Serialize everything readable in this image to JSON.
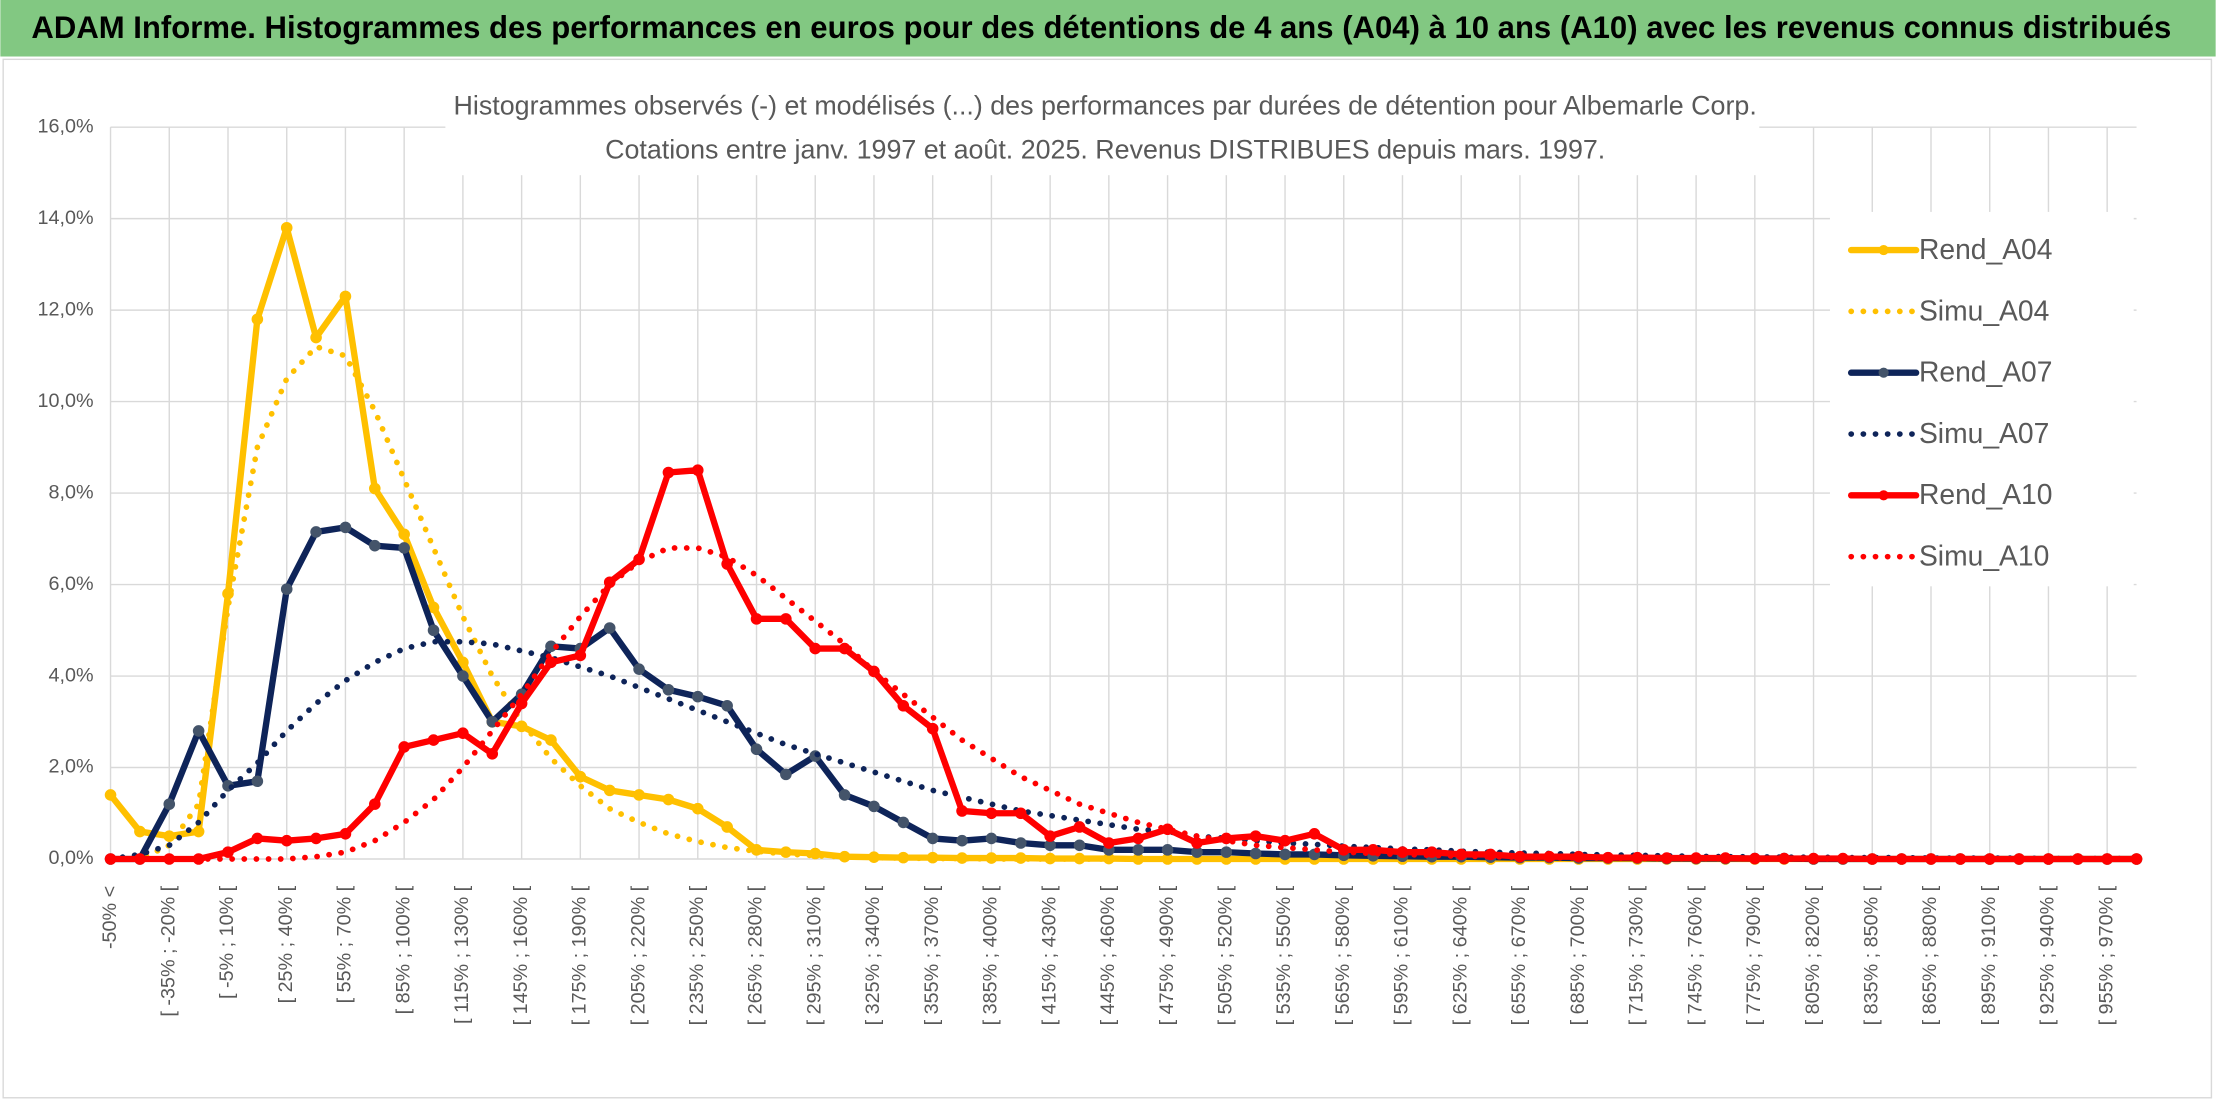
{
  "header": {
    "title": "ADAM Informe. Histogrammes des performances en euros pour des détentions de 4 ans (A04) à 10 ans (A10) avec les revenus connus distribués"
  },
  "chart_data": {
    "type": "line",
    "title": "Histogrammes observés (-) et modélisés (...) des performances par durées de détention pour Albemarle Corp.",
    "subtitle": "Cotations entre janv. 1997 et août. 2025. Revenus DISTRIBUES depuis mars. 1997.",
    "categories": [
      "-50% <",
      null,
      "[ -35% ; -20% [",
      null,
      "[ -5% ; 10% [",
      null,
      "[ 25% ; 40% [",
      null,
      "[ 55% ; 70% [",
      null,
      "[ 85% ; 100% [",
      null,
      "[ 115% ; 130% [",
      null,
      "[ 145% ; 160% [",
      null,
      "[ 175% ; 190% [",
      null,
      "[ 205% ; 220% [",
      null,
      "[ 235% ; 250% [",
      null,
      "[ 265% ; 280% [",
      null,
      "[ 295% ; 310% [",
      null,
      "[ 325% ; 340% [",
      null,
      "[ 355% ; 370% [",
      null,
      "[ 385% ; 400% [",
      null,
      "[ 415% ; 430% [",
      null,
      "[ 445% ; 460% [",
      null,
      "[ 475% ; 490% [",
      null,
      "[ 505% ; 520% [",
      null,
      "[ 535% ; 550% [",
      null,
      "[ 565% ; 580% [",
      null,
      "[ 595% ; 610% [",
      null,
      "[ 625% ; 640% [",
      null,
      "[ 655% ; 670% [",
      null,
      "[ 685% ; 700% [",
      null,
      "[ 715% ; 730% [",
      null,
      "[ 745% ; 760% [",
      null,
      "[ 775% ; 790% [",
      null,
      "[ 805% ; 820% [",
      null,
      "[ 835% ; 850% [",
      null,
      "[ 865% ; 880% [",
      null,
      "[ 895% ; 910% [",
      null,
      "[ 925% ; 940% [",
      null,
      "[ 955% ; 970% [",
      null
    ],
    "series": [
      {
        "name": "Rend_A04",
        "color": "#ffc000",
        "style": "solid",
        "marker": true,
        "marker_color": "#ffc000",
        "values": [
          1.4,
          0.6,
          0.5,
          0.6,
          5.8,
          11.8,
          13.8,
          11.4,
          12.3,
          8.1,
          7.1,
          5.5,
          4.3,
          3.0,
          2.9,
          2.6,
          1.8,
          1.5,
          1.4,
          1.3,
          1.1,
          0.7,
          0.2,
          0.15,
          0.12,
          0.05,
          0.04,
          0.03,
          0.03,
          0.02,
          0.02,
          0.02,
          0.01,
          0.01,
          0.01,
          0,
          0,
          0,
          0,
          0,
          0,
          0,
          0,
          0,
          0,
          0,
          0,
          0,
          0,
          0,
          0,
          0,
          0,
          0,
          0,
          0,
          0,
          0,
          0,
          0,
          0,
          0,
          0,
          0,
          0,
          0,
          0,
          0,
          0,
          0
        ]
      },
      {
        "name": "Simu_A04",
        "color": "#ffc000",
        "style": "dotted",
        "marker": false,
        "values": [
          0,
          0,
          0.3,
          1.2,
          5.5,
          9.0,
          10.5,
          11.2,
          11.0,
          9.8,
          8.3,
          6.8,
          5.3,
          4.0,
          3.0,
          2.2,
          1.6,
          1.1,
          0.8,
          0.55,
          0.38,
          0.25,
          0.17,
          0.11,
          0.07,
          0.05,
          0.03,
          0.02,
          0.01,
          0.01,
          0,
          0,
          0,
          0,
          0,
          0,
          0,
          0,
          0,
          0,
          0,
          0,
          0,
          0,
          0,
          0,
          0,
          0,
          0,
          0,
          0,
          0,
          0,
          0,
          0,
          0,
          0,
          0,
          0,
          0,
          0,
          0,
          0,
          0,
          0,
          0,
          0,
          0,
          0,
          0
        ]
      },
      {
        "name": "Rend_A07",
        "color": "#0e2459",
        "style": "solid",
        "marker": true,
        "marker_color": "#44546a",
        "values": [
          0,
          0,
          1.2,
          2.8,
          1.6,
          1.7,
          5.9,
          7.15,
          7.25,
          6.85,
          6.8,
          5.0,
          4.0,
          3.0,
          3.6,
          4.65,
          4.6,
          5.05,
          4.15,
          3.7,
          3.55,
          3.35,
          2.4,
          1.85,
          2.25,
          1.4,
          1.15,
          0.8,
          0.45,
          0.4,
          0.45,
          0.35,
          0.3,
          0.3,
          0.2,
          0.2,
          0.2,
          0.15,
          0.15,
          0.12,
          0.1,
          0.1,
          0.08,
          0.07,
          0.06,
          0.05,
          0.05,
          0.04,
          0.03,
          0.03,
          0.02,
          0.02,
          0.02,
          0.01,
          0.01,
          0.01,
          0.01,
          0.01,
          0,
          0,
          0,
          0,
          0,
          0,
          0,
          0,
          0,
          0,
          0,
          0
        ]
      },
      {
        "name": "Simu_A07",
        "color": "#0e2459",
        "style": "dotted",
        "marker": false,
        "values": [
          0,
          0.1,
          0.3,
          0.8,
          1.5,
          2.1,
          2.8,
          3.4,
          3.9,
          4.3,
          4.6,
          4.75,
          4.75,
          4.7,
          4.55,
          4.4,
          4.2,
          4.0,
          3.75,
          3.5,
          3.25,
          3.0,
          2.75,
          2.5,
          2.3,
          2.1,
          1.9,
          1.7,
          1.5,
          1.35,
          1.2,
          1.05,
          0.95,
          0.85,
          0.75,
          0.65,
          0.6,
          0.5,
          0.45,
          0.4,
          0.35,
          0.32,
          0.28,
          0.25,
          0.22,
          0.2,
          0.17,
          0.15,
          0.13,
          0.12,
          0.1,
          0.09,
          0.08,
          0.07,
          0.06,
          0.05,
          0.05,
          0.04,
          0.04,
          0.03,
          0.03,
          0.03,
          0.02,
          0.02,
          0.02,
          0.02,
          0.01,
          0.01,
          0.01,
          0.01
        ]
      },
      {
        "name": "Rend_A10",
        "color": "#ff0000",
        "style": "solid",
        "marker": true,
        "marker_color": "#ff0000",
        "values": [
          0,
          0,
          0,
          0,
          0.15,
          0.45,
          0.4,
          0.45,
          0.55,
          1.2,
          2.45,
          2.6,
          2.75,
          2.3,
          3.4,
          4.3,
          4.45,
          6.05,
          6.55,
          8.45,
          8.5,
          6.45,
          5.25,
          5.25,
          4.6,
          4.6,
          4.1,
          3.35,
          2.85,
          1.05,
          1.0,
          1.0,
          0.5,
          0.7,
          0.35,
          0.45,
          0.65,
          0.35,
          0.45,
          0.5,
          0.4,
          0.55,
          0.2,
          0.2,
          0.15,
          0.15,
          0.1,
          0.1,
          0.05,
          0.05,
          0.05,
          0.03,
          0.03,
          0.02,
          0.02,
          0.02,
          0.01,
          0.01,
          0.01,
          0.01,
          0,
          0,
          0,
          0,
          0,
          0,
          0,
          0,
          0,
          0
        ]
      },
      {
        "name": "Simu_A10",
        "color": "#ff0000",
        "style": "dotted",
        "marker": false,
        "values": [
          0,
          0,
          0,
          0,
          0,
          0,
          0,
          0.05,
          0.15,
          0.4,
          0.8,
          1.3,
          2.0,
          2.8,
          3.6,
          4.5,
          5.3,
          6.0,
          6.5,
          6.8,
          6.8,
          6.6,
          6.2,
          5.7,
          5.2,
          4.7,
          4.1,
          3.6,
          3.1,
          2.6,
          2.2,
          1.8,
          1.5,
          1.2,
          1.0,
          0.8,
          0.65,
          0.5,
          0.4,
          0.3,
          0.25,
          0.2,
          0.15,
          0.12,
          0.1,
          0.08,
          0.06,
          0.05,
          0.04,
          0.03,
          0.02,
          0.02,
          0.01,
          0.01,
          0.01,
          0.01,
          0,
          0,
          0,
          0,
          0,
          0,
          0,
          0,
          0,
          0,
          0,
          0,
          0,
          0
        ]
      }
    ],
    "ylim": [
      0,
      16
    ],
    "yticks": [
      {
        "value": 0,
        "label": "0,0%"
      },
      {
        "value": 2,
        "label": "2,0%"
      },
      {
        "value": 4,
        "label": "4,0%"
      },
      {
        "value": 6,
        "label": "6,0%"
      },
      {
        "value": 8,
        "label": "8,0%"
      },
      {
        "value": 10,
        "label": "10,0%"
      },
      {
        "value": 12,
        "label": "12,0%"
      },
      {
        "value": 14,
        "label": "14,0%"
      },
      {
        "value": 16,
        "label": "16,0%"
      }
    ],
    "grid": true,
    "legend": "right"
  }
}
